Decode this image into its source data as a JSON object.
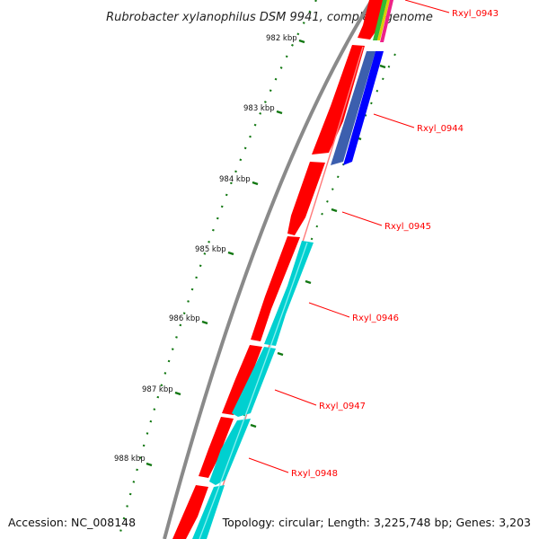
{
  "title": "Rubrobacter xylanophilus DSM 9941, complete genome",
  "footer": {
    "accession": "Accession: NC_008148",
    "summary": "Topology: circular; Length: 3,225,748 bp; Genes: 3,203"
  },
  "scale_labels": [
    "982 kbp",
    "983 kbp",
    "984 kbp",
    "985 kbp",
    "986 kbp",
    "987 kbp",
    "988 kbp"
  ],
  "gene_labels": [
    "Rxyl_0943",
    "Rxyl_0944",
    "Rxyl_0945",
    "Rxyl_0946",
    "Rxyl_0947",
    "Rxyl_0948"
  ],
  "colors": {
    "backbone": "#888888",
    "forward_strand_genes": "#ff0000",
    "reverse_strand_genes": "#00cccc",
    "rxyl_0944_outer": "#3355aa",
    "rxyl_0944_inner": "#0000ff",
    "ticks": "#117711",
    "label_text": "#ff0000"
  }
}
